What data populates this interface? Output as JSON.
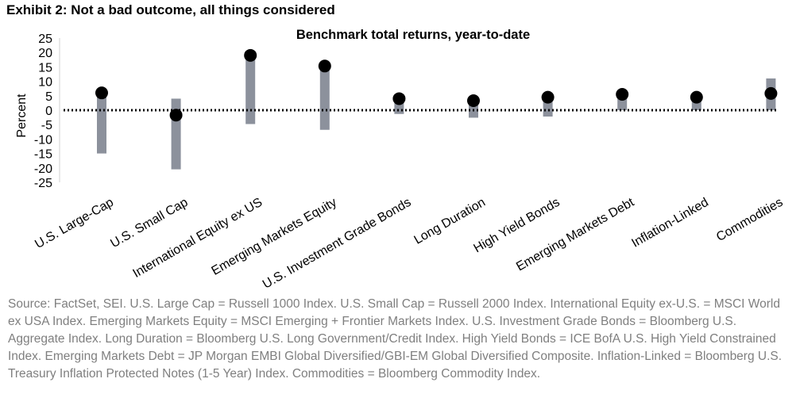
{
  "exhibit_title": "Exhibit 2: Not a bad outcome, all things considered",
  "source_note": "Source: FactSet, SEI. U.S. Large Cap = Russell 1000 Index. U.S. Small Cap = Russell 2000 Index. International Equity ex-U.S. = MSCI World ex USA Index. Emerging Markets Equity = MSCI Emerging + Frontier Markets Index. U.S. Investment Grade Bonds = Bloomberg U.S. Aggregate Index. Long Duration = Bloomberg U.S. Long Government/Credit Index. High Yield Bonds = ICE BofA U.S. High Yield Constrained Index. Emerging Markets Debt = JP Morgan EMBI Global Diversified/GBI-EM Global Diversified Composite. Inflation-Linked = Bloomberg U.S. Treasury Inflation Protected Notes (1-5 Year) Index. Commodities = Bloomberg Commodity Index.",
  "chart_data": {
    "type": "range-dot",
    "title": "Benchmark total returns, year-to-date",
    "ylabel": "Percent",
    "ylim": [
      -25,
      25
    ],
    "yticks": [
      25,
      20,
      15,
      10,
      5,
      0,
      -5,
      -10,
      -15,
      -20,
      -25
    ],
    "categories": [
      "U.S. Large-Cap",
      "U.S. Small Cap",
      "International Equity ex US",
      "Emerging Markets Equity",
      "U.S. Investment Grade Bonds",
      "Long Duration",
      "High Yield Bonds",
      "Emerging Markets Debt",
      "Inflation-Linked",
      "Commodities"
    ],
    "range_low": [
      -15,
      -20.5,
      -4.8,
      -6.8,
      -1.3,
      -2.6,
      -2.2,
      0,
      0,
      0
    ],
    "range_high": [
      6,
      4,
      19,
      15,
      4,
      2.5,
      4.5,
      6,
      5,
      11
    ],
    "ytd_value": [
      6,
      -1.7,
      19,
      15.3,
      4,
      3.3,
      4.5,
      5.5,
      4.5,
      5.8
    ],
    "zero_line": "dotted",
    "colors": {
      "range_bar": "#8c919c",
      "dot": "#000000"
    }
  }
}
